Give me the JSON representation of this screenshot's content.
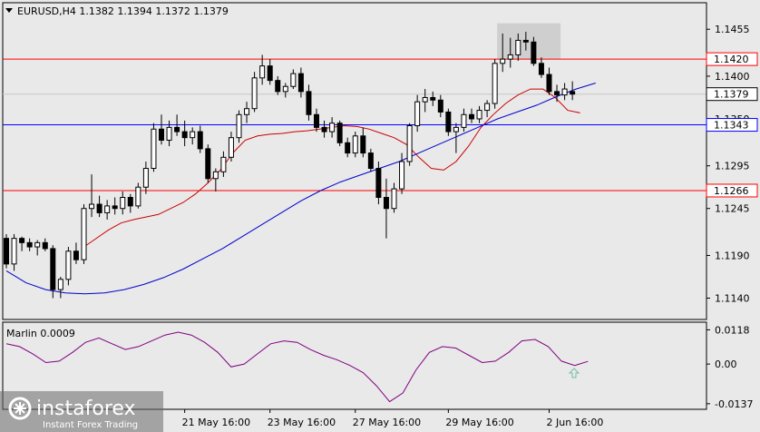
{
  "header": {
    "symbol_line": "EURUSD,H4  1.1382 1.1394 1.1372 1.1379"
  },
  "colors": {
    "background": "#e9e9e9",
    "bull_fill": "#ffffff",
    "bear_fill": "#000000",
    "ma_fast": "#cc0000",
    "ma_slow": "#0000cc",
    "level_red": "#ff0000",
    "level_blue": "#0000ff",
    "oscillator": "#800080",
    "arrow": "#70c0a0"
  },
  "watermark": {
    "brand": "instaforex",
    "tagline": "Instant Forex Trading"
  },
  "chart_data": [
    {
      "type": "candlestick",
      "ylim": [
        1.1115,
        1.1485
      ],
      "y_ticks": [
        "1.1455",
        "1.1400",
        "1.1350",
        "1.1295",
        "1.1245",
        "1.1190",
        "1.1140"
      ],
      "x_tick_labels": [
        "21 May 16:00",
        "23 May 16:00",
        "27 May 16:00",
        "29 May 16:00",
        "2 Jun 16:00"
      ],
      "levels": [
        {
          "label": "1.1420",
          "value": 1.142,
          "color": "red"
        },
        {
          "label": "1.1343",
          "value": 1.1343,
          "color": "blue"
        },
        {
          "label": "1.1266",
          "value": 1.1266,
          "color": "red"
        }
      ],
      "current_price": {
        "label": "1.1379",
        "value": 1.1379
      },
      "candles": [
        [
          1.121,
          1.1215,
          1.1175,
          1.118
        ],
        [
          1.118,
          1.1215,
          1.1172,
          1.121
        ],
        [
          1.121,
          1.1212,
          1.1195,
          1.1205
        ],
        [
          1.1205,
          1.121,
          1.1195,
          1.12
        ],
        [
          1.12,
          1.1208,
          1.119,
          1.1205
        ],
        [
          1.1205,
          1.121,
          1.1195,
          1.1198
        ],
        [
          1.1198,
          1.1202,
          1.114,
          1.115
        ],
        [
          1.115,
          1.1165,
          1.114,
          1.1162
        ],
        [
          1.1162,
          1.12,
          1.1155,
          1.1195
        ],
        [
          1.1195,
          1.1205,
          1.118,
          1.1185
        ],
        [
          1.1185,
          1.125,
          1.118,
          1.1245
        ],
        [
          1.1245,
          1.1285,
          1.1235,
          1.125
        ],
        [
          1.125,
          1.126,
          1.1235,
          1.124
        ],
        [
          1.124,
          1.1255,
          1.1232,
          1.1248
        ],
        [
          1.1248,
          1.1258,
          1.1238,
          1.1245
        ],
        [
          1.1245,
          1.1265,
          1.1238,
          1.1258
        ],
        [
          1.1258,
          1.1262,
          1.124,
          1.1248
        ],
        [
          1.1248,
          1.1275,
          1.1245,
          1.127
        ],
        [
          1.127,
          1.13,
          1.1262,
          1.1292
        ],
        [
          1.1292,
          1.1345,
          1.1288,
          1.1338
        ],
        [
          1.1338,
          1.1355,
          1.132,
          1.1325
        ],
        [
          1.1325,
          1.1348,
          1.1318,
          1.134
        ],
        [
          1.134,
          1.1355,
          1.133,
          1.1335
        ],
        [
          1.1335,
          1.1348,
          1.1318,
          1.1328
        ],
        [
          1.1328,
          1.134,
          1.132,
          1.1335
        ],
        [
          1.1335,
          1.1342,
          1.131,
          1.1315
        ],
        [
          1.1315,
          1.132,
          1.1275,
          1.128
        ],
        [
          1.128,
          1.1292,
          1.1265,
          1.1288
        ],
        [
          1.1288,
          1.1312,
          1.1282,
          1.1305
        ],
        [
          1.1305,
          1.1335,
          1.13,
          1.1328
        ],
        [
          1.1328,
          1.136,
          1.1322,
          1.1355
        ],
        [
          1.1355,
          1.137,
          1.1345,
          1.1362
        ],
        [
          1.1362,
          1.1405,
          1.1358,
          1.1398
        ],
        [
          1.1398,
          1.1425,
          1.139,
          1.1412
        ],
        [
          1.1412,
          1.142,
          1.139,
          1.1395
        ],
        [
          1.1395,
          1.14,
          1.1378,
          1.1382
        ],
        [
          1.1382,
          1.1392,
          1.1375,
          1.1388
        ],
        [
          1.1388,
          1.1408,
          1.1385,
          1.1403
        ],
        [
          1.1403,
          1.141,
          1.1375,
          1.1382
        ],
        [
          1.1382,
          1.139,
          1.1348,
          1.1355
        ],
        [
          1.1355,
          1.1362,
          1.1335,
          1.134
        ],
        [
          1.134,
          1.1348,
          1.1328,
          1.1335
        ],
        [
          1.1335,
          1.1352,
          1.1328,
          1.1345
        ],
        [
          1.1345,
          1.1348,
          1.1318,
          1.1322
        ],
        [
          1.1322,
          1.1328,
          1.1305,
          1.131
        ],
        [
          1.131,
          1.1335,
          1.1305,
          1.133
        ],
        [
          1.133,
          1.134,
          1.1305,
          1.131
        ],
        [
          1.131,
          1.1315,
          1.1288,
          1.1292
        ],
        [
          1.1292,
          1.13,
          1.125,
          1.1258
        ],
        [
          1.1258,
          1.128,
          1.121,
          1.1245
        ],
        [
          1.1245,
          1.1275,
          1.124,
          1.1268
        ],
        [
          1.1268,
          1.131,
          1.1262,
          1.13
        ],
        [
          1.13,
          1.1345,
          1.1295,
          1.1342
        ],
        [
          1.1342,
          1.1378,
          1.1335,
          1.137
        ],
        [
          1.137,
          1.1385,
          1.1358,
          1.1375
        ],
        [
          1.1375,
          1.1382,
          1.1365,
          1.1372
        ],
        [
          1.1372,
          1.1378,
          1.1352,
          1.1358
        ],
        [
          1.1358,
          1.1362,
          1.133,
          1.1335
        ],
        [
          1.1335,
          1.1345,
          1.131,
          1.134
        ],
        [
          1.134,
          1.1362,
          1.1335,
          1.1355
        ],
        [
          1.1355,
          1.1362,
          1.1345,
          1.135
        ],
        [
          1.135,
          1.1365,
          1.1345,
          1.136
        ],
        [
          1.136,
          1.1372,
          1.1352,
          1.1368
        ],
        [
          1.1368,
          1.142,
          1.1362,
          1.1415
        ],
        [
          1.1415,
          1.145,
          1.1405,
          1.142
        ],
        [
          1.142,
          1.1445,
          1.141,
          1.1425
        ],
        [
          1.1425,
          1.145,
          1.1418,
          1.1442
        ],
        [
          1.1442,
          1.1452,
          1.143,
          1.144
        ],
        [
          1.144,
          1.1446,
          1.1412,
          1.1415
        ],
        [
          1.1415,
          1.1422,
          1.1398,
          1.1402
        ],
        [
          1.1402,
          1.141,
          1.1378,
          1.1382
        ],
        [
          1.1382,
          1.139,
          1.137,
          1.1378
        ],
        [
          1.1378,
          1.1392,
          1.1372,
          1.1385
        ],
        [
          1.1382,
          1.1394,
          1.1372,
          1.1379
        ]
      ],
      "ma_fast": [
        1.12,
        1.121,
        1.122,
        1.1228,
        1.1232,
        1.1235,
        1.1238,
        1.1245,
        1.1252,
        1.1262,
        1.1275,
        1.129,
        1.131,
        1.1325,
        1.133,
        1.1332,
        1.1333,
        1.1335,
        1.1336,
        1.1338,
        1.134,
        1.1342,
        1.1341,
        1.1338,
        1.1333,
        1.1328,
        1.132,
        1.1305,
        1.1292,
        1.129,
        1.13,
        1.1318,
        1.134,
        1.1355,
        1.1368,
        1.1378,
        1.1385,
        1.1385,
        1.1375,
        1.136,
        1.1357
      ],
      "ma_slow": [
        1.1172,
        1.1158,
        1.115,
        1.1146,
        1.1145,
        1.1146,
        1.115,
        1.1156,
        1.1164,
        1.1174,
        1.1186,
        1.1198,
        1.1212,
        1.1226,
        1.124,
        1.1254,
        1.1266,
        1.1276,
        1.1284,
        1.1292,
        1.13,
        1.131,
        1.132,
        1.133,
        1.134,
        1.135,
        1.1358,
        1.1366,
        1.1376,
        1.1385,
        1.1392
      ],
      "oscillator": {
        "label": "Marlin 0.0009",
        "y_ticks": [
          "0.0118",
          "0.00",
          "-0.0137"
        ],
        "ylim": [
          -0.015,
          0.0135
        ],
        "values": [
          0.007,
          0.006,
          0.0035,
          0.0005,
          0.001,
          0.004,
          0.0075,
          0.009,
          0.007,
          0.005,
          0.006,
          0.008,
          0.01,
          0.011,
          0.01,
          0.0075,
          0.004,
          -0.001,
          0.0,
          0.0035,
          0.007,
          0.008,
          0.0075,
          0.005,
          0.003,
          0.0015,
          -0.0005,
          -0.003,
          -0.0075,
          -0.013,
          -0.01,
          -0.002,
          0.004,
          0.006,
          0.0055,
          0.003,
          0.0005,
          0.001,
          0.004,
          0.008,
          0.0085,
          0.006,
          0.001,
          -0.0005,
          0.0009
        ]
      }
    }
  ]
}
